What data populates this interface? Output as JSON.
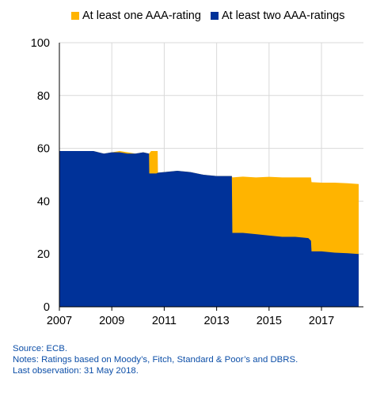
{
  "legend": [
    {
      "label": "At least one AAA-rating",
      "color": "#ffb400"
    },
    {
      "label": "At least two AAA-ratings",
      "color": "#003299"
    }
  ],
  "chart_data": {
    "type": "area",
    "xlim": [
      2007,
      2018.6
    ],
    "ylim": [
      0,
      100
    ],
    "x_ticks": [
      "2007",
      "2009",
      "2011",
      "2013",
      "2015",
      "2017"
    ],
    "y_ticks": [
      "0",
      "20",
      "40",
      "60",
      "80",
      "100"
    ],
    "grid": true,
    "legend_position": "top",
    "series": [
      {
        "name": "At least one AAA-rating",
        "color": "#ffb400",
        "x": [
          2007.0,
          2008.3,
          2008.7,
          2009.0,
          2009.3,
          2009.6,
          2009.9,
          2010.2,
          2010.42,
          2010.5,
          2010.7,
          2010.75,
          2010.76,
          2011.0,
          2011.5,
          2012.0,
          2012.5,
          2013.0,
          2013.5,
          2013.58,
          2013.6,
          2014.0,
          2014.5,
          2015.0,
          2015.5,
          2016.0,
          2016.5,
          2016.6,
          2016.62,
          2017.0,
          2017.5,
          2018.0,
          2018.42
        ],
        "y": [
          59,
          59,
          58,
          58.5,
          59,
          58.5,
          58,
          58.5,
          58,
          59,
          59,
          59,
          50.8,
          51,
          51.5,
          51,
          50,
          49.5,
          49.5,
          49.5,
          49,
          49.3,
          49,
          49.2,
          49,
          49,
          49,
          49,
          47.2,
          47,
          47,
          46.8,
          46.5
        ]
      },
      {
        "name": "At least two AAA-ratings",
        "color": "#003299",
        "x": [
          2007.0,
          2008.3,
          2008.7,
          2009.0,
          2009.3,
          2009.6,
          2009.9,
          2010.2,
          2010.42,
          2010.43,
          2010.7,
          2010.76,
          2011.0,
          2011.5,
          2012.0,
          2012.5,
          2013.0,
          2013.5,
          2013.58,
          2013.6,
          2014.0,
          2014.5,
          2015.0,
          2015.5,
          2016.0,
          2016.5,
          2016.6,
          2016.62,
          2017.0,
          2017.5,
          2018.0,
          2018.42
        ],
        "y": [
          59,
          59,
          58,
          58.5,
          58.5,
          58,
          58,
          58.5,
          58,
          50.5,
          50.5,
          50.8,
          51,
          51.5,
          51,
          50,
          49.5,
          49.5,
          49.5,
          28,
          28,
          27.5,
          27,
          26.5,
          26.5,
          26,
          25,
          21,
          21,
          20.5,
          20.3,
          20
        ]
      }
    ]
  },
  "notes": {
    "source": "Source: ECB.",
    "notes": "Notes: Ratings based on Moody’s, Fitch, Standard & Poor’s and DBRS.",
    "last_obs": "Last observation: 31 May 2018."
  }
}
